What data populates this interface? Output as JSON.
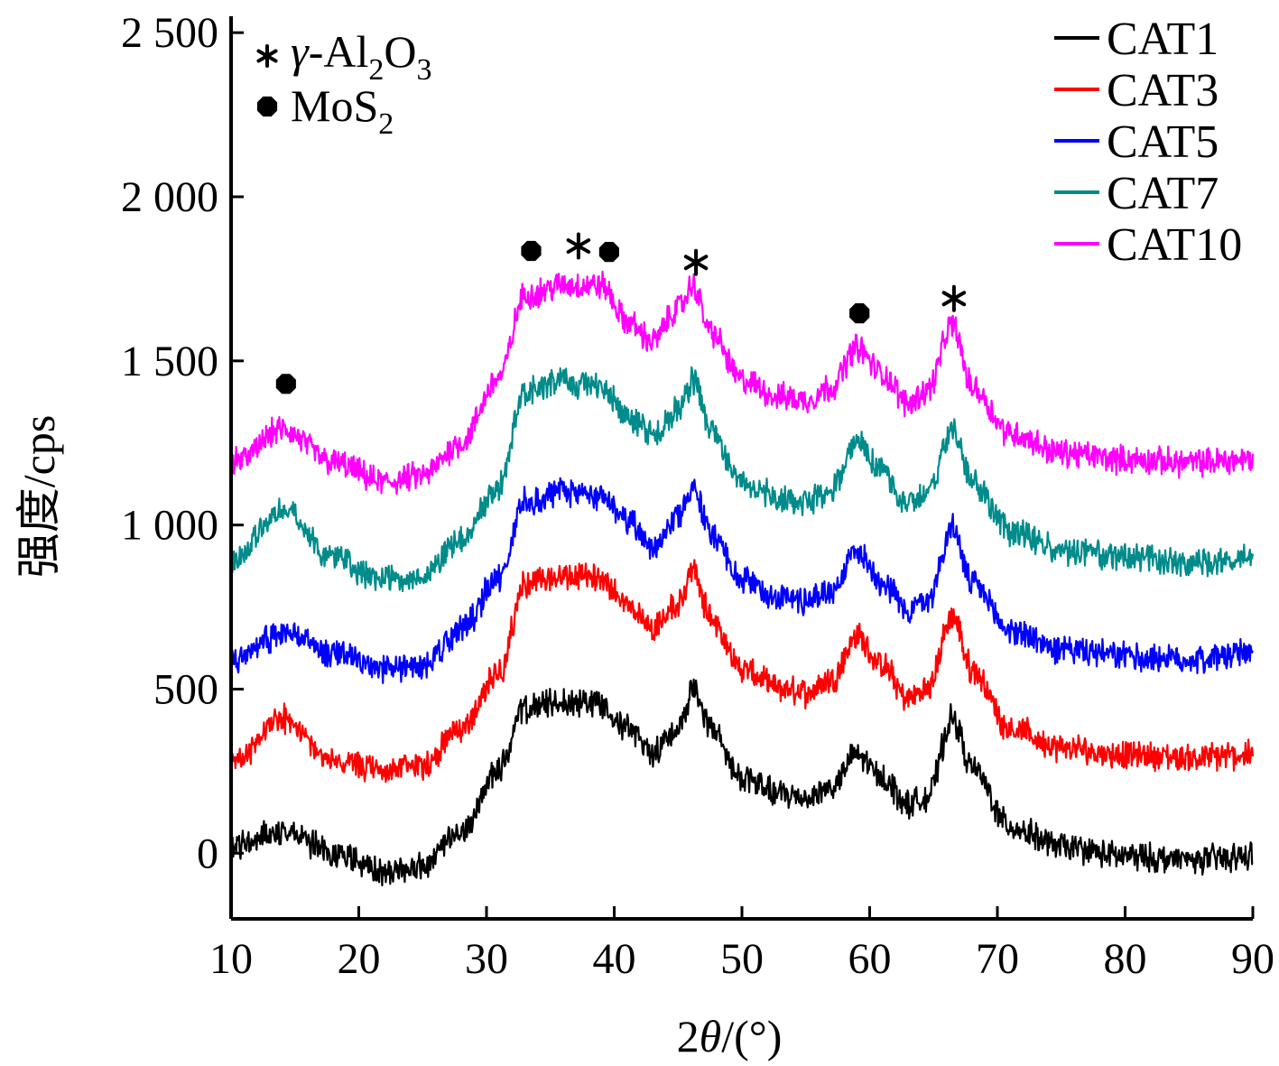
{
  "chart_data": {
    "type": "line",
    "xlabel_parts": [
      "2",
      "θ",
      "/(°)"
    ],
    "ylabel": "强度/cps",
    "xlim": [
      10,
      90
    ],
    "ylim": [
      -200,
      2550
    ],
    "x_ticks": [
      10,
      20,
      30,
      40,
      50,
      60,
      70,
      80,
      90
    ],
    "x_tick_labels": [
      "10",
      "20",
      "30",
      "40",
      "50",
      "60",
      "70",
      "80",
      "90"
    ],
    "y_ticks": [
      0,
      500,
      1000,
      1500,
      2000,
      2500
    ],
    "y_tick_labels": [
      "0",
      "500",
      "1 000",
      "1 500",
      "2 000",
      "2 500"
    ],
    "legend_position": "top-right",
    "phase_legend": [
      {
        "marker": "asterisk",
        "label_parts": [
          "γ",
          "-Al",
          "2",
          "O",
          "3"
        ]
      },
      {
        "marker": "dot",
        "label_parts": [
          "MoS",
          "2"
        ]
      }
    ],
    "series": [
      {
        "name": "CAT1",
        "color": "#000000",
        "points": [
          [
            10,
            20
          ],
          [
            14,
            70
          ],
          [
            18,
            0
          ],
          [
            22,
            -60
          ],
          [
            25,
            -40
          ],
          [
            28,
            60
          ],
          [
            31,
            260
          ],
          [
            33,
            440
          ],
          [
            36,
            460
          ],
          [
            39,
            460
          ],
          [
            41,
            380
          ],
          [
            43,
            310
          ],
          [
            45,
            380
          ],
          [
            46.2,
            500
          ],
          [
            47.5,
            380
          ],
          [
            50,
            230
          ],
          [
            53,
            180
          ],
          [
            55,
            170
          ],
          [
            57,
            200
          ],
          [
            59,
            300
          ],
          [
            61,
            230
          ],
          [
            63,
            150
          ],
          [
            64.5,
            170
          ],
          [
            66.5,
            410
          ],
          [
            68,
            260
          ],
          [
            71,
            80
          ],
          [
            75,
            20
          ],
          [
            80,
            -10
          ],
          [
            85,
            -20
          ],
          [
            90,
            -10
          ]
        ]
      },
      {
        "name": "CAT3",
        "color": "#ff0000",
        "points": [
          [
            10,
            270
          ],
          [
            14,
            410
          ],
          [
            18,
            280
          ],
          [
            22,
            250
          ],
          [
            25,
            270
          ],
          [
            28,
            380
          ],
          [
            31,
            550
          ],
          [
            33,
            820
          ],
          [
            36,
            840
          ],
          [
            39,
            840
          ],
          [
            41,
            760
          ],
          [
            43,
            690
          ],
          [
            45,
            760
          ],
          [
            46.2,
            860
          ],
          [
            47.5,
            720
          ],
          [
            50,
            560
          ],
          [
            53,
            500
          ],
          [
            55,
            490
          ],
          [
            57,
            530
          ],
          [
            59,
            660
          ],
          [
            61,
            570
          ],
          [
            63,
            470
          ],
          [
            64.5,
            500
          ],
          [
            66.5,
            720
          ],
          [
            68,
            560
          ],
          [
            71,
            380
          ],
          [
            75,
            320
          ],
          [
            80,
            300
          ],
          [
            85,
            290
          ],
          [
            90,
            300
          ]
        ]
      },
      {
        "name": "CAT5",
        "color": "#0000ff",
        "points": [
          [
            10,
            590
          ],
          [
            14,
            670
          ],
          [
            18,
            610
          ],
          [
            22,
            560
          ],
          [
            25,
            570
          ],
          [
            28,
            680
          ],
          [
            31,
            840
          ],
          [
            33,
            1070
          ],
          [
            36,
            1100
          ],
          [
            39,
            1090
          ],
          [
            41,
            1010
          ],
          [
            43,
            940
          ],
          [
            45,
            1030
          ],
          [
            46.2,
            1110
          ],
          [
            47.5,
            980
          ],
          [
            50,
            830
          ],
          [
            53,
            780
          ],
          [
            55,
            770
          ],
          [
            57,
            800
          ],
          [
            59,
            920
          ],
          [
            61,
            830
          ],
          [
            63,
            740
          ],
          [
            64.5,
            770
          ],
          [
            66.5,
            990
          ],
          [
            68,
            820
          ],
          [
            71,
            680
          ],
          [
            75,
            620
          ],
          [
            80,
            600
          ],
          [
            85,
            590
          ],
          [
            90,
            610
          ]
        ]
      },
      {
        "name": "CAT7",
        "color": "#008b8b",
        "points": [
          [
            10,
            890
          ],
          [
            14,
            1050
          ],
          [
            18,
            900
          ],
          [
            22,
            830
          ],
          [
            25,
            850
          ],
          [
            28,
            950
          ],
          [
            31,
            1120
          ],
          [
            33,
            1410
          ],
          [
            36,
            1440
          ],
          [
            39,
            1420
          ],
          [
            41,
            1330
          ],
          [
            43,
            1270
          ],
          [
            45,
            1350
          ],
          [
            46.2,
            1440
          ],
          [
            47.5,
            1290
          ],
          [
            50,
            1130
          ],
          [
            53,
            1080
          ],
          [
            55,
            1070
          ],
          [
            57,
            1110
          ],
          [
            59,
            1260
          ],
          [
            61,
            1160
          ],
          [
            63,
            1060
          ],
          [
            64.5,
            1100
          ],
          [
            66.5,
            1290
          ],
          [
            68,
            1130
          ],
          [
            71,
            980
          ],
          [
            75,
            920
          ],
          [
            80,
            900
          ],
          [
            85,
            880
          ],
          [
            90,
            900
          ]
        ]
      },
      {
        "name": "CAT10",
        "color": "#ff00ff",
        "points": [
          [
            10,
            1190
          ],
          [
            14,
            1290
          ],
          [
            18,
            1190
          ],
          [
            22,
            1130
          ],
          [
            25,
            1150
          ],
          [
            28,
            1250
          ],
          [
            31,
            1450
          ],
          [
            33,
            1700
          ],
          [
            36,
            1730
          ],
          [
            39,
            1730
          ],
          [
            41,
            1620
          ],
          [
            43,
            1560
          ],
          [
            45,
            1660
          ],
          [
            46.2,
            1730
          ],
          [
            47.5,
            1590
          ],
          [
            50,
            1440
          ],
          [
            53,
            1390
          ],
          [
            55,
            1380
          ],
          [
            57,
            1420
          ],
          [
            59,
            1540
          ],
          [
            61,
            1460
          ],
          [
            63,
            1370
          ],
          [
            64.5,
            1410
          ],
          [
            66.5,
            1610
          ],
          [
            68,
            1420
          ],
          [
            71,
            1280
          ],
          [
            75,
            1220
          ],
          [
            80,
            1200
          ],
          [
            85,
            1190
          ],
          [
            90,
            1200
          ]
        ]
      }
    ],
    "annotations": [
      {
        "marker": "dot",
        "x": 14.3,
        "y": 1430
      },
      {
        "marker": "dot",
        "x": 33.5,
        "y": 1835
      },
      {
        "marker": "asterisk",
        "x": 37.2,
        "y": 1850
      },
      {
        "marker": "dot",
        "x": 39.6,
        "y": 1832
      },
      {
        "marker": "asterisk",
        "x": 46.4,
        "y": 1800
      },
      {
        "marker": "dot",
        "x": 59.2,
        "y": 1645
      },
      {
        "marker": "asterisk",
        "x": 66.6,
        "y": 1690
      }
    ]
  }
}
